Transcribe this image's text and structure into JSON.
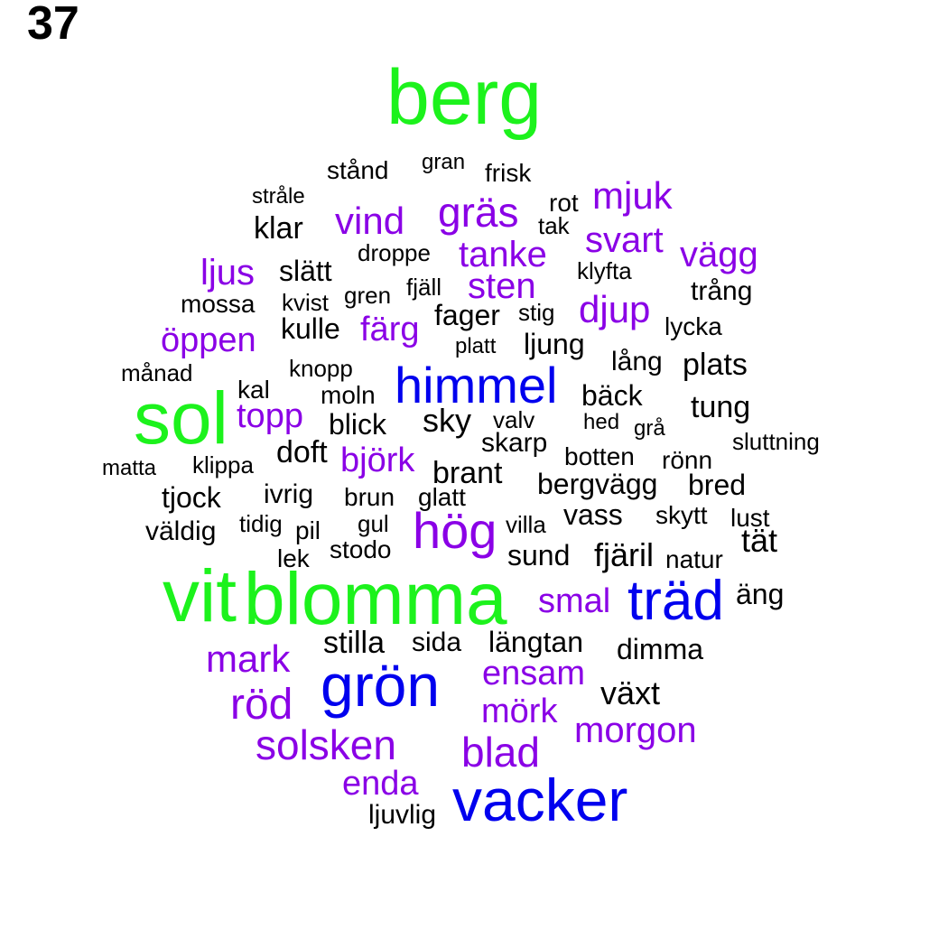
{
  "page_number": "37",
  "colors": {
    "tier1": "#1cf21c",
    "tier2": "#0000ee",
    "tier3": "#8a00e6",
    "tier4": "#000000"
  },
  "words": [
    {
      "text": "berg",
      "tier": "tier1"
    },
    {
      "text": "sol",
      "tier": "tier1"
    },
    {
      "text": "vit",
      "tier": "tier1"
    },
    {
      "text": "blomma",
      "tier": "tier1"
    },
    {
      "text": "himmel",
      "tier": "tier2"
    },
    {
      "text": "hög",
      "tier": "tier3"
    },
    {
      "text": "träd",
      "tier": "tier2"
    },
    {
      "text": "grön",
      "tier": "tier2"
    },
    {
      "text": "vacker",
      "tier": "tier2"
    },
    {
      "text": "gräs",
      "tier": "tier3"
    },
    {
      "text": "mjuk",
      "tier": "tier3"
    },
    {
      "text": "vind",
      "tier": "tier3"
    },
    {
      "text": "svart",
      "tier": "tier3"
    },
    {
      "text": "tanke",
      "tier": "tier3"
    },
    {
      "text": "vägg",
      "tier": "tier3"
    },
    {
      "text": "ljus",
      "tier": "tier3"
    },
    {
      "text": "sten",
      "tier": "tier3"
    },
    {
      "text": "djup",
      "tier": "tier3"
    },
    {
      "text": "öppen",
      "tier": "tier3"
    },
    {
      "text": "färg",
      "tier": "tier3"
    },
    {
      "text": "topp",
      "tier": "tier3"
    },
    {
      "text": "björk",
      "tier": "tier3"
    },
    {
      "text": "smal",
      "tier": "tier3"
    },
    {
      "text": "mark",
      "tier": "tier3"
    },
    {
      "text": "ensam",
      "tier": "tier3"
    },
    {
      "text": "röd",
      "tier": "tier3"
    },
    {
      "text": "mörk",
      "tier": "tier3"
    },
    {
      "text": "morgon",
      "tier": "tier3"
    },
    {
      "text": "solsken",
      "tier": "tier3"
    },
    {
      "text": "blad",
      "tier": "tier3"
    },
    {
      "text": "enda",
      "tier": "tier3"
    },
    {
      "text": "stånd",
      "tier": "tier4"
    },
    {
      "text": "gran",
      "tier": "tier4"
    },
    {
      "text": "frisk",
      "tier": "tier4"
    },
    {
      "text": "stråle",
      "tier": "tier4"
    },
    {
      "text": "rot",
      "tier": "tier4"
    },
    {
      "text": "klar",
      "tier": "tier4"
    },
    {
      "text": "tak",
      "tier": "tier4"
    },
    {
      "text": "droppe",
      "tier": "tier4"
    },
    {
      "text": "slätt",
      "tier": "tier4"
    },
    {
      "text": "klyfta",
      "tier": "tier4"
    },
    {
      "text": "fjäll",
      "tier": "tier4"
    },
    {
      "text": "trång",
      "tier": "tier4"
    },
    {
      "text": "mossa",
      "tier": "tier4"
    },
    {
      "text": "kvist",
      "tier": "tier4"
    },
    {
      "text": "gren",
      "tier": "tier4"
    },
    {
      "text": "fager",
      "tier": "tier4"
    },
    {
      "text": "stig",
      "tier": "tier4"
    },
    {
      "text": "kulle",
      "tier": "tier4"
    },
    {
      "text": "lycka",
      "tier": "tier4"
    },
    {
      "text": "platt",
      "tier": "tier4"
    },
    {
      "text": "ljung",
      "tier": "tier4"
    },
    {
      "text": "lång",
      "tier": "tier4"
    },
    {
      "text": "plats",
      "tier": "tier4"
    },
    {
      "text": "månad",
      "tier": "tier4"
    },
    {
      "text": "knopp",
      "tier": "tier4"
    },
    {
      "text": "kal",
      "tier": "tier4"
    },
    {
      "text": "moln",
      "tier": "tier4"
    },
    {
      "text": "bäck",
      "tier": "tier4"
    },
    {
      "text": "tung",
      "tier": "tier4"
    },
    {
      "text": "blick",
      "tier": "tier4"
    },
    {
      "text": "sky",
      "tier": "tier4"
    },
    {
      "text": "valv",
      "tier": "tier4"
    },
    {
      "text": "hed",
      "tier": "tier4"
    },
    {
      "text": "grå",
      "tier": "tier4"
    },
    {
      "text": "skarp",
      "tier": "tier4"
    },
    {
      "text": "sluttning",
      "tier": "tier4"
    },
    {
      "text": "doft",
      "tier": "tier4"
    },
    {
      "text": "botten",
      "tier": "tier4"
    },
    {
      "text": "rönn",
      "tier": "tier4"
    },
    {
      "text": "matta",
      "tier": "tier4"
    },
    {
      "text": "klippa",
      "tier": "tier4"
    },
    {
      "text": "brant",
      "tier": "tier4"
    },
    {
      "text": "bergvägg",
      "tier": "tier4"
    },
    {
      "text": "bred",
      "tier": "tier4"
    },
    {
      "text": "tjock",
      "tier": "tier4"
    },
    {
      "text": "ivrig",
      "tier": "tier4"
    },
    {
      "text": "brun",
      "tier": "tier4"
    },
    {
      "text": "glatt",
      "tier": "tier4"
    },
    {
      "text": "vass",
      "tier": "tier4"
    },
    {
      "text": "skytt",
      "tier": "tier4"
    },
    {
      "text": "lust",
      "tier": "tier4"
    },
    {
      "text": "väldig",
      "tier": "tier4"
    },
    {
      "text": "tidig",
      "tier": "tier4"
    },
    {
      "text": "pil",
      "tier": "tier4"
    },
    {
      "text": "gul",
      "tier": "tier4"
    },
    {
      "text": "villa",
      "tier": "tier4"
    },
    {
      "text": "tät",
      "tier": "tier4"
    },
    {
      "text": "lek",
      "tier": "tier4"
    },
    {
      "text": "stodo",
      "tier": "tier4"
    },
    {
      "text": "sund",
      "tier": "tier4"
    },
    {
      "text": "fjäril",
      "tier": "tier4"
    },
    {
      "text": "natur",
      "tier": "tier4"
    },
    {
      "text": "äng",
      "tier": "tier4"
    },
    {
      "text": "stilla",
      "tier": "tier4"
    },
    {
      "text": "sida",
      "tier": "tier4"
    },
    {
      "text": "längtan",
      "tier": "tier4"
    },
    {
      "text": "dimma",
      "tier": "tier4"
    },
    {
      "text": "växt",
      "tier": "tier4"
    },
    {
      "text": "ljuvlig",
      "tier": "tier4"
    }
  ]
}
